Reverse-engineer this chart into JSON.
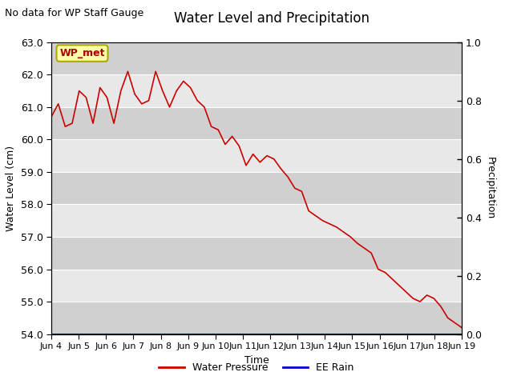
{
  "title": "Water Level and Precipitation",
  "top_left_text": "No data for WP Staff Gauge",
  "ylabel_left": "Water Level (cm)",
  "ylabel_right": "Precipitation",
  "xlabel": "Time",
  "ylim_left": [
    54.0,
    63.0
  ],
  "ylim_right": [
    0.0,
    1.0
  ],
  "yticks_left": [
    54.0,
    55.0,
    56.0,
    57.0,
    58.0,
    59.0,
    60.0,
    61.0,
    62.0,
    63.0
  ],
  "yticks_right": [
    0.0,
    0.2,
    0.4,
    0.6,
    0.8,
    1.0
  ],
  "xtick_labels": [
    "Jun 4",
    "Jun 5",
    "Jun 6",
    "Jun 7",
    "Jun 8",
    "Jun 9",
    "Jun 10",
    "Jun 11",
    "Jun 12",
    "Jun 13",
    "Jun 14",
    "Jun 15",
    "Jun 16",
    "Jun 17",
    "Jun 18",
    "Jun 19"
  ],
  "annotation_label": "WP_met",
  "bg_color": "#e8e8e8",
  "stripe_color": "#d0d0d0",
  "line_color_wp": "#cc0000",
  "line_color_rain": "#0000cc",
  "legend_wp": "Water Pressure",
  "legend_rain": "EE Rain",
  "water_pressure": [
    60.7,
    61.1,
    60.4,
    60.5,
    61.5,
    61.3,
    60.5,
    61.6,
    61.3,
    60.5,
    61.5,
    62.1,
    61.4,
    61.1,
    61.2,
    62.1,
    61.5,
    61.0,
    61.5,
    61.8,
    61.6,
    61.2,
    61.0,
    60.4,
    60.3,
    59.85,
    60.1,
    59.8,
    59.2,
    59.55,
    59.3,
    59.5,
    59.4,
    59.1,
    58.85,
    58.5,
    58.4,
    57.8,
    57.65,
    57.5,
    57.4,
    57.3,
    57.15,
    57.0,
    56.8,
    56.65,
    56.5,
    56.0,
    55.9,
    55.7,
    55.5,
    55.3,
    55.1,
    55.0,
    55.2,
    55.1,
    54.85,
    54.5,
    54.35,
    54.2
  ],
  "ee_rain": [
    0.0
  ]
}
